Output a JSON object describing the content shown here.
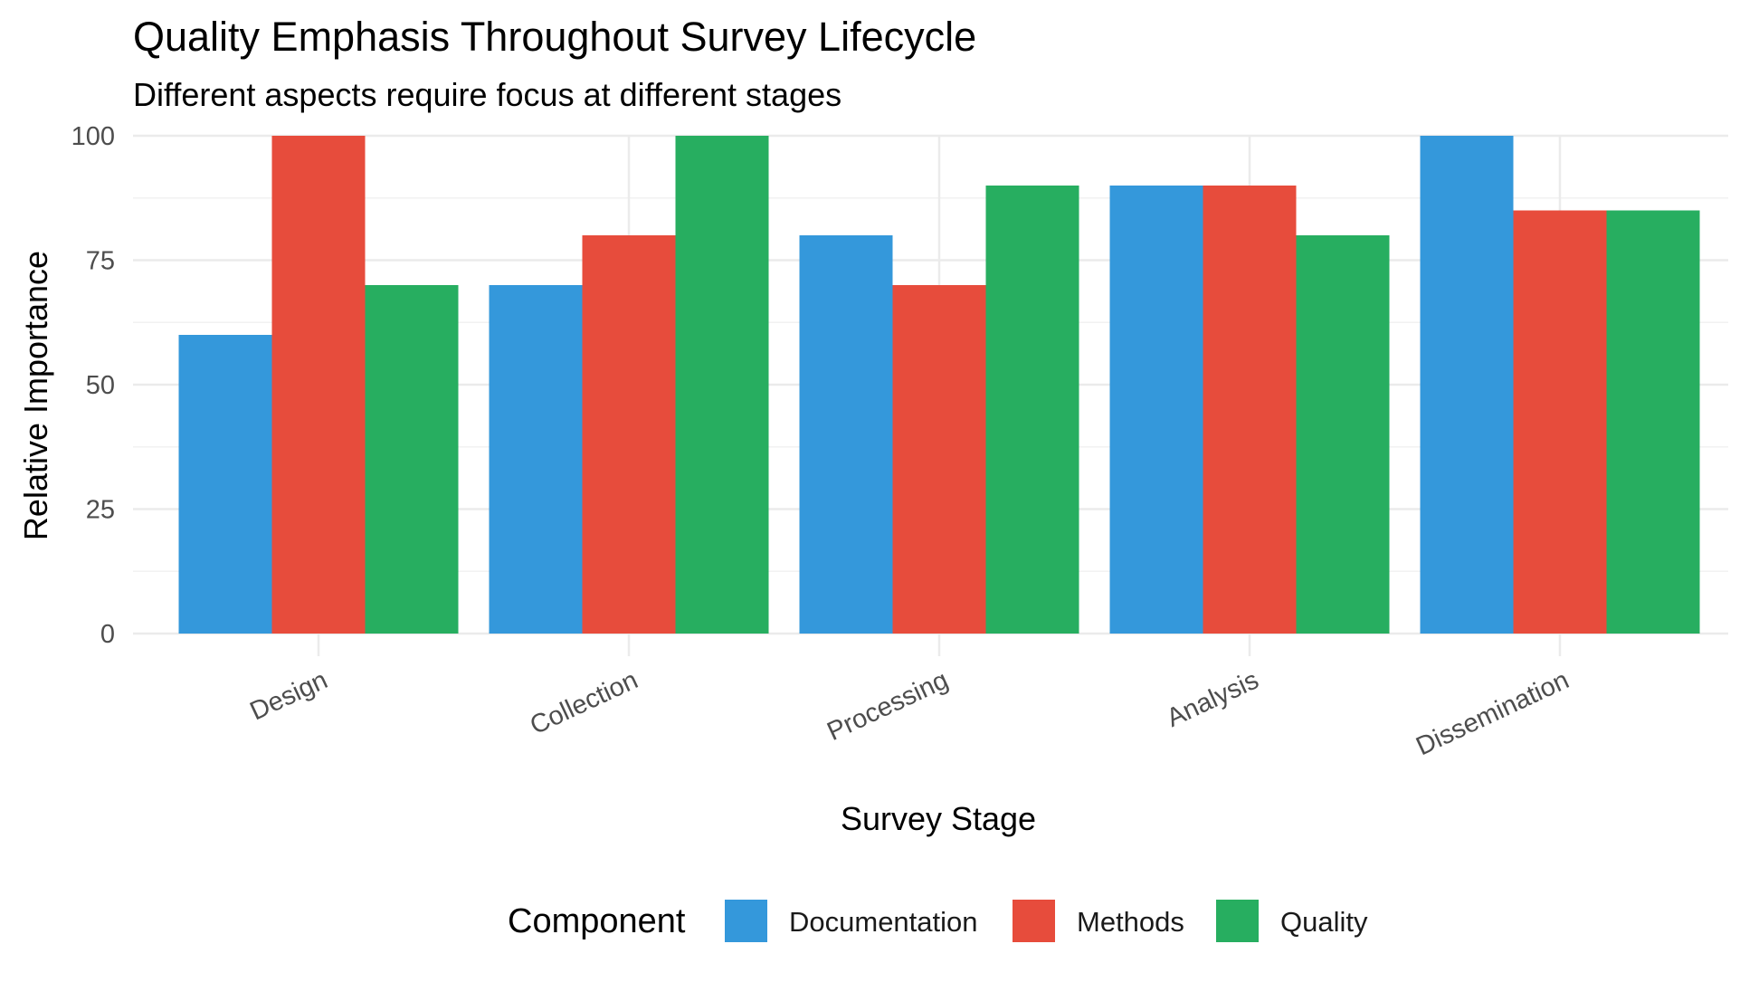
{
  "chart_data": {
    "type": "bar",
    "title": "Quality Emphasis Throughout Survey Lifecycle",
    "subtitle": "Different aspects require focus at different stages",
    "xlabel": "Survey Stage",
    "ylabel": "Relative Importance",
    "categories": [
      "Design",
      "Collection",
      "Processing",
      "Analysis",
      "Dissemination"
    ],
    "series": [
      {
        "name": "Documentation",
        "color": "#3498db",
        "values": [
          60,
          70,
          80,
          90,
          100
        ]
      },
      {
        "name": "Methods",
        "color": "#e74c3c",
        "values": [
          100,
          80,
          70,
          90,
          85
        ]
      },
      {
        "name": "Quality",
        "color": "#27ae60",
        "values": [
          70,
          100,
          90,
          80,
          85
        ]
      }
    ],
    "ylim": [
      0,
      100
    ],
    "yticks": [
      0,
      25,
      50,
      75,
      100
    ],
    "grid": true,
    "legend": {
      "title": "Component",
      "position": "bottom"
    }
  }
}
